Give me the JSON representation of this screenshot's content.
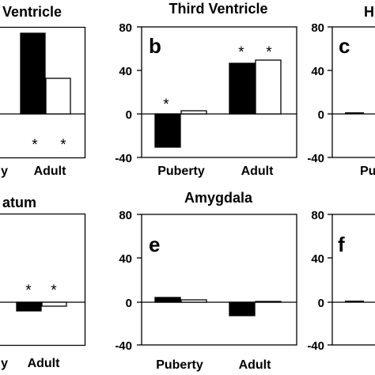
{
  "chart_data": [
    {
      "type": "bar",
      "title": "Ventricle",
      "panel": "",
      "categories": [
        "y",
        "Adult"
      ],
      "ylim": [
        -40,
        80
      ],
      "yticks": [],
      "series": [
        {
          "color": "#000000",
          "values": [
            null,
            74
          ]
        },
        {
          "color": "#ffffff",
          "values": [
            null,
            32
          ]
        }
      ],
      "significance": [
        [
          false,
          true
        ],
        [
          false,
          true
        ]
      ]
    },
    {
      "type": "bar",
      "title": "Third Ventricle",
      "panel": "b",
      "categories": [
        "Puberty",
        "Adult"
      ],
      "ylim": [
        -40,
        80
      ],
      "yticks": [
        "80",
        "40",
        "0",
        "-40"
      ],
      "series": [
        {
          "color": "#000000",
          "values": [
            -32,
            46
          ]
        },
        {
          "color": "#ffffff",
          "values": [
            2,
            48
          ]
        }
      ],
      "significance": [
        [
          true,
          true
        ],
        [
          false,
          true
        ]
      ]
    },
    {
      "type": "bar",
      "title": "H",
      "panel": "c",
      "categories": [
        "Pu"
      ],
      "ylim": [
        -40,
        80
      ],
      "yticks": [
        "80",
        "40",
        "0",
        "-40"
      ],
      "series": [
        {
          "color": "#000000",
          "values": [
            1
          ]
        },
        {
          "color": "#ffffff",
          "values": [
            2
          ]
        }
      ],
      "significance": [
        [
          false
        ],
        [
          false
        ]
      ]
    },
    {
      "type": "bar",
      "title": "atum",
      "panel": "",
      "categories": [
        "y",
        "Adult"
      ],
      "ylim": [
        -40,
        80
      ],
      "yticks": [],
      "series": [
        {
          "color": "#000000",
          "values": [
            null,
            -8
          ]
        },
        {
          "color": "#ffffff",
          "values": [
            null,
            -3
          ]
        }
      ],
      "significance": [
        [
          false,
          true
        ],
        [
          false,
          true
        ]
      ]
    },
    {
      "type": "bar",
      "title": "Amygdala",
      "panel": "e",
      "categories": [
        "Puberty",
        "Adult"
      ],
      "ylim": [
        -40,
        80
      ],
      "yticks": [
        "80",
        "40",
        "0",
        "-40"
      ],
      "series": [
        {
          "color": "#000000",
          "values": [
            5,
            -12
          ]
        },
        {
          "color": "#ffffff",
          "values": [
            2,
            1
          ]
        }
      ],
      "significance": [
        [
          false,
          false
        ],
        [
          false,
          false
        ]
      ]
    },
    {
      "type": "bar",
      "title": "",
      "panel": "f",
      "categories": [
        ""
      ],
      "ylim": [
        -40,
        80
      ],
      "yticks": [
        "80",
        "40",
        "0",
        "-40"
      ],
      "series": [
        {
          "color": "#000000",
          "values": [
            2
          ]
        },
        {
          "color": "#ffffff",
          "values": [
            1
          ]
        }
      ],
      "significance": [
        [
          false
        ],
        [
          false
        ]
      ]
    }
  ]
}
